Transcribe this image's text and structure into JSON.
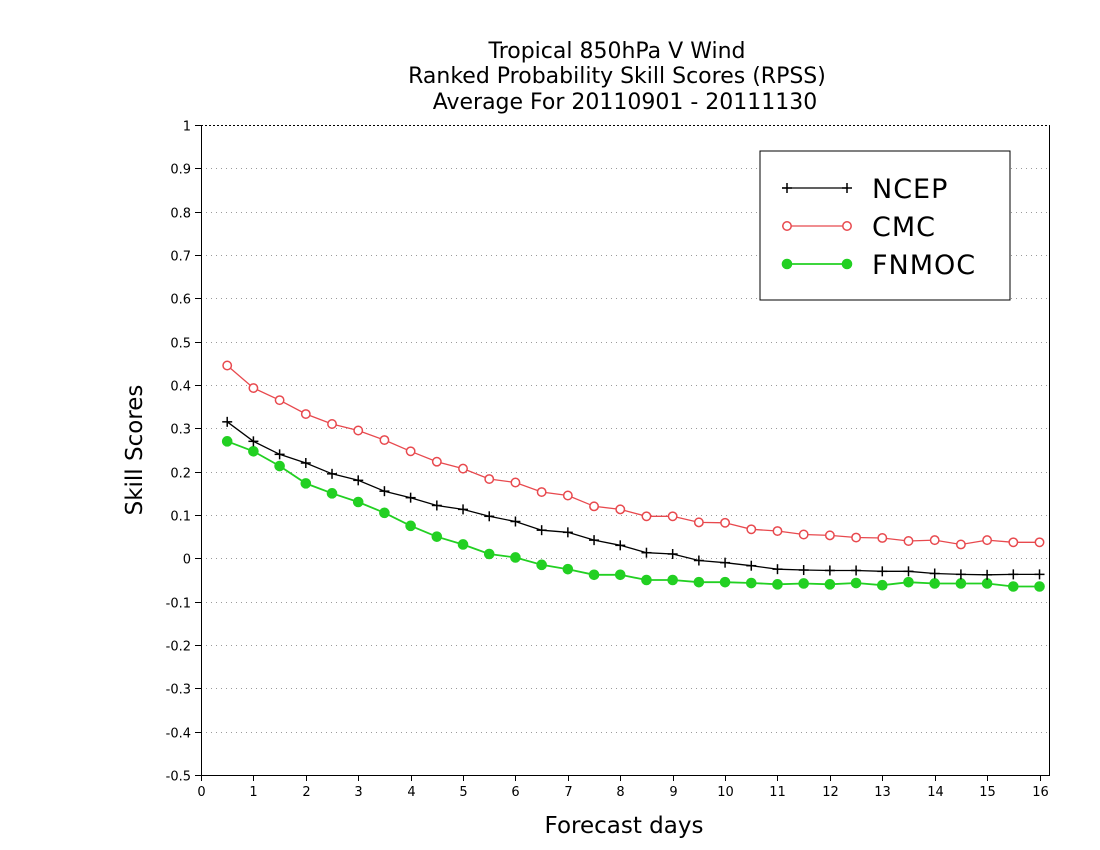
{
  "chart_data": {
    "type": "line",
    "title": [
      "Tropical 850hPa V Wind",
      "Ranked Probability Skill Scores (RPSS)",
      "Average For 20110901 - 20111130"
    ],
    "xlabel": "Forecast days",
    "ylabel": "Skill Scores",
    "xlim": [
      0,
      16.2
    ],
    "ylim": [
      -0.5,
      1
    ],
    "x_ticks": [
      0,
      1,
      2,
      3,
      4,
      5,
      6,
      7,
      8,
      9,
      10,
      11,
      12,
      13,
      14,
      15,
      16
    ],
    "y_ticks": [
      -0.5,
      -0.4,
      -0.3,
      -0.2,
      -0.1,
      0,
      0.1,
      0.2,
      0.3,
      0.4,
      0.5,
      0.6,
      0.7,
      0.8,
      0.9,
      1
    ],
    "grid": "horizontal dotted",
    "legend_position": "top-right",
    "x": [
      0.5,
      1,
      1.5,
      2,
      2.5,
      3,
      3.5,
      4,
      4.5,
      5,
      5.5,
      6,
      6.5,
      7,
      7.5,
      8,
      8.5,
      9,
      9.5,
      10,
      10.5,
      11,
      11.5,
      12,
      12.5,
      13,
      13.5,
      14,
      14.5,
      15,
      15.5,
      16
    ],
    "series": [
      {
        "name": "NCEP",
        "color": "#000000",
        "marker": "plus",
        "values": [
          0.315,
          0.27,
          0.24,
          0.22,
          0.195,
          0.18,
          0.155,
          0.14,
          0.122,
          0.113,
          0.097,
          0.085,
          0.065,
          0.06,
          0.042,
          0.03,
          0.013,
          0.01,
          -0.005,
          -0.01,
          -0.017,
          -0.025,
          -0.027,
          -0.028,
          -0.028,
          -0.03,
          -0.03,
          -0.035,
          -0.037,
          -0.038,
          -0.037,
          -0.037
        ]
      },
      {
        "name": "CMC",
        "color": "#e8494e",
        "marker": "open-circle",
        "values": [
          0.445,
          0.393,
          0.365,
          0.333,
          0.31,
          0.295,
          0.273,
          0.247,
          0.223,
          0.207,
          0.183,
          0.175,
          0.153,
          0.145,
          0.12,
          0.113,
          0.097,
          0.097,
          0.083,
          0.082,
          0.067,
          0.063,
          0.055,
          0.053,
          0.048,
          0.047,
          0.04,
          0.042,
          0.032,
          0.042,
          0.037,
          0.037
        ]
      },
      {
        "name": "FNMOC",
        "color": "#22d022",
        "marker": "filled-circle",
        "values": [
          0.27,
          0.247,
          0.213,
          0.173,
          0.15,
          0.13,
          0.105,
          0.075,
          0.05,
          0.032,
          0.01,
          0.002,
          -0.015,
          -0.025,
          -0.038,
          -0.038,
          -0.05,
          -0.05,
          -0.055,
          -0.055,
          -0.057,
          -0.06,
          -0.058,
          -0.06,
          -0.057,
          -0.062,
          -0.055,
          -0.058,
          -0.058,
          -0.058,
          -0.065,
          -0.065
        ]
      }
    ]
  }
}
